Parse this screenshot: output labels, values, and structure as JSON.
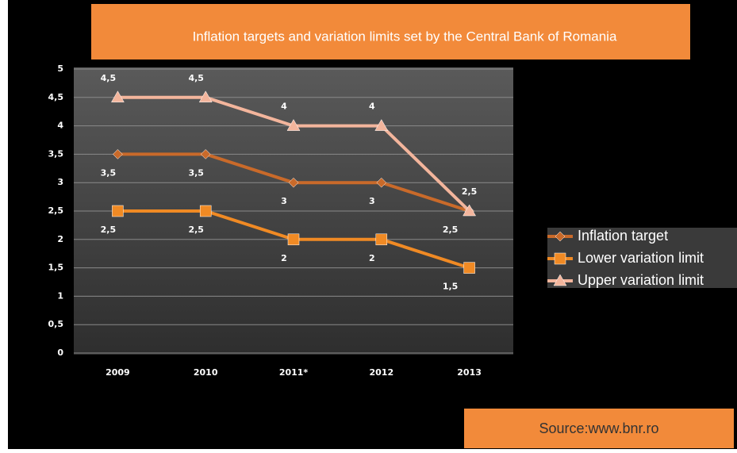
{
  "chart_data": {
    "type": "line",
    "title": "Inflation targets and variation limits set by the Central Bank of Romania",
    "source": "Source:www.bnr.ro",
    "categories": [
      "2009",
      "2010",
      "2011*",
      "2012",
      "2013"
    ],
    "series": [
      {
        "name": "Inflation target",
        "color": "#c96a2a",
        "values": [
          3.5,
          3.5,
          3,
          3,
          2.5
        ],
        "value_labels": [
          "3,5",
          "3,5",
          "3",
          "3",
          "2,5"
        ]
      },
      {
        "name": "Lower variation limit",
        "color": "#f08a24",
        "values": [
          2.5,
          2.5,
          2,
          2,
          1.5
        ],
        "value_labels": [
          "2,5",
          "2,5",
          "2",
          "2",
          "1,5"
        ]
      },
      {
        "name": "Upper variation limit",
        "color": "#f3b59c",
        "values": [
          4.5,
          4.5,
          4,
          4,
          2.5
        ],
        "value_labels": [
          "4,5",
          "4,5",
          "4",
          "4",
          "2,5"
        ]
      }
    ],
    "ylim": [
      0,
      5
    ],
    "yticks": [
      0,
      {
        "value": 0.5,
        "label": "0,5"
      },
      1,
      {
        "value": 1.5,
        "label": "1,5"
      },
      2,
      {
        "value": 2.5,
        "label": "2,5"
      },
      3,
      {
        "value": 3.5,
        "label": "3,5"
      },
      4,
      {
        "value": 4.5,
        "label": "4,5"
      },
      5
    ],
    "grid": true
  }
}
